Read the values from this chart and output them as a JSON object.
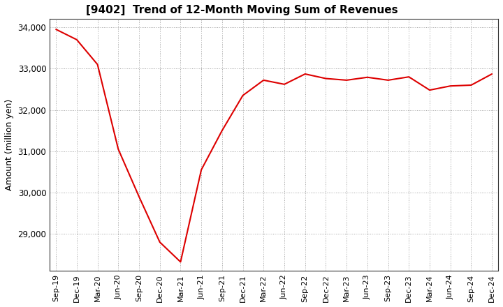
{
  "title": "[9402]  Trend of 12-Month Moving Sum of Revenues",
  "ylabel": "Amount (million yen)",
  "line_color": "#dd0000",
  "background_color": "#ffffff",
  "grid_color": "#999999",
  "x_labels": [
    "Sep-19",
    "Dec-19",
    "Mar-20",
    "Jun-20",
    "Sep-20",
    "Dec-20",
    "Mar-21",
    "Jun-21",
    "Sep-21",
    "Dec-21",
    "Mar-22",
    "Jun-22",
    "Sep-22",
    "Dec-22",
    "Mar-23",
    "Jun-23",
    "Sep-23",
    "Dec-23",
    "Mar-24",
    "Jun-24",
    "Sep-24",
    "Dec-24"
  ],
  "values": [
    33950,
    33700,
    33100,
    31050,
    29900,
    28800,
    28320,
    30550,
    31500,
    32350,
    32720,
    32620,
    32870,
    32760,
    32720,
    32790,
    32720,
    32800,
    32480,
    32580,
    32600,
    32870
  ],
  "ylim_min": 28100,
  "ylim_max": 34200,
  "yticks": [
    29000,
    30000,
    31000,
    32000,
    33000,
    34000
  ]
}
